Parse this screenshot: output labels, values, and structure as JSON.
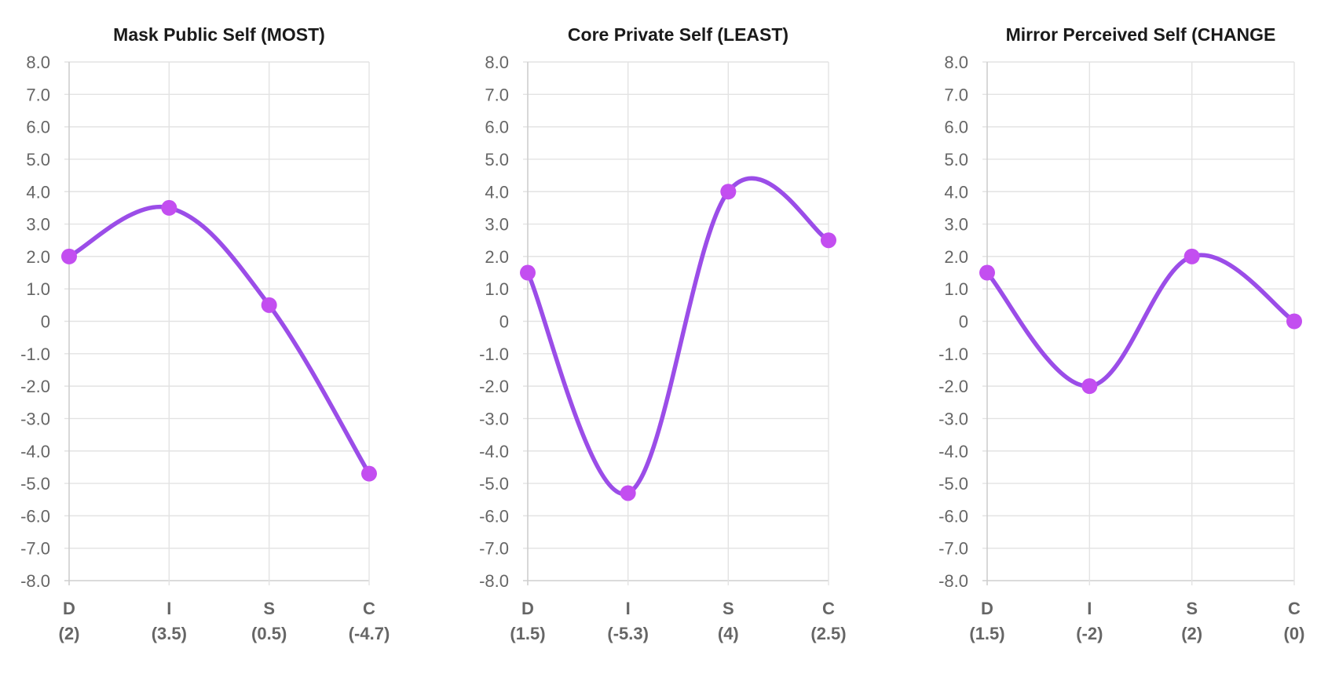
{
  "colors": {
    "line": "#9b4de8",
    "point": "#c34ef0",
    "grid": "#e3e3e3",
    "text": "#666666"
  },
  "chart_data": [
    {
      "type": "line",
      "title": "Mask Public Self (MOST)",
      "categories": [
        "D",
        "I",
        "S",
        "C"
      ],
      "category_sublabels": [
        "(2)",
        "(3.5)",
        "(0.5)",
        "(-4.7)"
      ],
      "values": [
        2,
        3.5,
        0.5,
        -4.7
      ],
      "yticks": [
        "8.0",
        "7.0",
        "6.0",
        "5.0",
        "4.0",
        "3.0",
        "2.0",
        "1.0",
        "0",
        "-1.0",
        "-2.0",
        "-3.0",
        "-4.0",
        "-5.0",
        "-6.0",
        "-7.0",
        "-8.0"
      ],
      "ylim": [
        -8,
        8
      ],
      "grid": true
    },
    {
      "type": "line",
      "title": "Core Private Self (LEAST)",
      "categories": [
        "D",
        "I",
        "S",
        "C"
      ],
      "category_sublabels": [
        "(1.5)",
        "(-5.3)",
        "(4)",
        "(2.5)"
      ],
      "values": [
        1.5,
        -5.3,
        4,
        2.5
      ],
      "yticks": [
        "8.0",
        "7.0",
        "6.0",
        "5.0",
        "4.0",
        "3.0",
        "2.0",
        "1.0",
        "0",
        "-1.0",
        "-2.0",
        "-3.0",
        "-4.0",
        "-5.0",
        "-6.0",
        "-7.0",
        "-8.0"
      ],
      "ylim": [
        -8,
        8
      ],
      "grid": true
    },
    {
      "type": "line",
      "title": "Mirror Perceived Self (CHANGE",
      "categories": [
        "D",
        "I",
        "S",
        "C"
      ],
      "category_sublabels": [
        "(1.5)",
        "(-2)",
        "(2)",
        "(0)"
      ],
      "values": [
        1.5,
        -2,
        2,
        0
      ],
      "yticks": [
        "8.0",
        "7.0",
        "6.0",
        "5.0",
        "4.0",
        "3.0",
        "2.0",
        "1.0",
        "0",
        "-1.0",
        "-2.0",
        "-3.0",
        "-4.0",
        "-5.0",
        "-6.0",
        "-7.0",
        "-8.0"
      ],
      "ylim": [
        -8,
        8
      ],
      "grid": true
    }
  ]
}
